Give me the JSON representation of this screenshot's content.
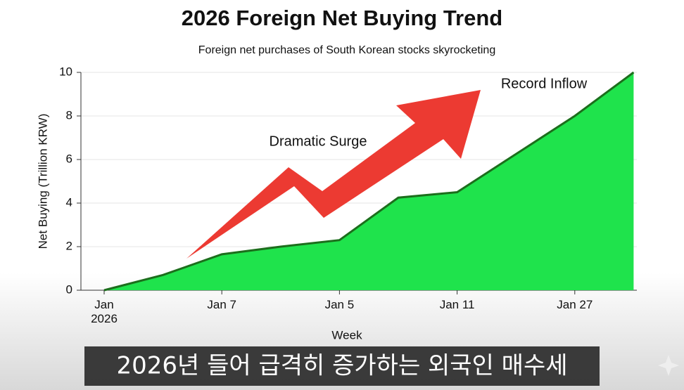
{
  "chart_data": {
    "type": "area",
    "title": "2026 Foreign Net Buying Trend",
    "subtitle": "Foreign net purchases of South Korean stocks skyrocketing",
    "x_label": "Week",
    "y_label": "Net Buying (Trillion KRW)",
    "categories": [
      "Jan\n2026",
      null,
      "Jan 7",
      null,
      "Jan 5",
      null,
      "Jan 11",
      null,
      "Jan 27",
      null
    ],
    "values": [
      0,
      0.7,
      1.65,
      2.0,
      2.3,
      4.25,
      4.5,
      6.25,
      8.0,
      10.0
    ],
    "color": "#1fe34c",
    "line_color": "#1c6e1c",
    "ylim": [
      0,
      10
    ],
    "yticks": [
      0,
      2,
      4,
      6,
      8,
      10
    ],
    "grid": true,
    "annotations": [
      "Dramatic Surge",
      "Record Inflow"
    ]
  },
  "caption": "2026년 들어 급격히 증가하는 외국인 매수세"
}
